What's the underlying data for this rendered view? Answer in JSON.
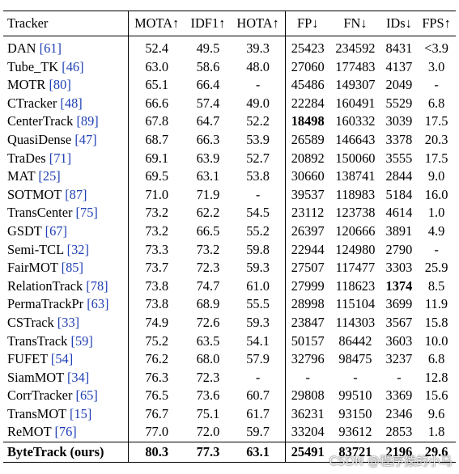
{
  "table": {
    "columns": [
      "Tracker",
      "MOTA↑",
      "IDF1↑",
      "HOTA↑",
      "FP↓",
      "FN↓",
      "IDs↓",
      "FPS↑"
    ],
    "rows": [
      {
        "name": "DAN",
        "cite": "[61]",
        "mota": "52.4",
        "idf1": "49.5",
        "hota": "39.3",
        "fp": "25423",
        "fn": "234592",
        "ids": "8431",
        "fps": "<3.9"
      },
      {
        "name": "Tube_TK",
        "cite": "[46]",
        "mota": "63.0",
        "idf1": "58.6",
        "hota": "48.0",
        "fp": "27060",
        "fn": "177483",
        "ids": "4137",
        "fps": "3.0"
      },
      {
        "name": "MOTR",
        "cite": "[80]",
        "mota": "65.1",
        "idf1": "66.4",
        "hota": "-",
        "fp": "45486",
        "fn": "149307",
        "ids": "2049",
        "fps": "-"
      },
      {
        "name": "CTracker",
        "cite": "[48]",
        "mota": "66.6",
        "idf1": "57.4",
        "hota": "49.0",
        "fp": "22284",
        "fn": "160491",
        "ids": "5529",
        "fps": "6.8"
      },
      {
        "name": "CenterTrack",
        "cite": "[89]",
        "mota": "67.8",
        "idf1": "64.7",
        "hota": "52.2",
        "fp": "18498",
        "fn": "160332",
        "ids": "3039",
        "fps": "17.5",
        "bold": [
          "fp"
        ]
      },
      {
        "name": "QuasiDense",
        "cite": "[47]",
        "mota": "68.7",
        "idf1": "66.3",
        "hota": "53.9",
        "fp": "26589",
        "fn": "146643",
        "ids": "3378",
        "fps": "20.3"
      },
      {
        "name": "TraDes",
        "cite": "[71]",
        "mota": "69.1",
        "idf1": "63.9",
        "hota": "52.7",
        "fp": "20892",
        "fn": "150060",
        "ids": "3555",
        "fps": "17.5"
      },
      {
        "name": "MAT",
        "cite": "[25]",
        "mota": "69.5",
        "idf1": "63.1",
        "hota": "53.8",
        "fp": "30660",
        "fn": "138741",
        "ids": "2844",
        "fps": "9.0"
      },
      {
        "name": "SOTMOT",
        "cite": "[87]",
        "mota": "71.0",
        "idf1": "71.9",
        "hota": "-",
        "fp": "39537",
        "fn": "118983",
        "ids": "5184",
        "fps": "16.0"
      },
      {
        "name": "TransCenter",
        "cite": "[75]",
        "mota": "73.2",
        "idf1": "62.2",
        "hota": "54.5",
        "fp": "23112",
        "fn": "123738",
        "ids": "4614",
        "fps": "1.0"
      },
      {
        "name": "GSDT",
        "cite": "[67]",
        "mota": "73.2",
        "idf1": "66.5",
        "hota": "55.2",
        "fp": "26397",
        "fn": "120666",
        "ids": "3891",
        "fps": "4.9"
      },
      {
        "name": "Semi-TCL",
        "cite": "[32]",
        "mota": "73.3",
        "idf1": "73.2",
        "hota": "59.8",
        "fp": "22944",
        "fn": "124980",
        "ids": "2790",
        "fps": "-"
      },
      {
        "name": "FairMOT",
        "cite": "[85]",
        "mota": "73.7",
        "idf1": "72.3",
        "hota": "59.3",
        "fp": "27507",
        "fn": "117477",
        "ids": "3303",
        "fps": "25.9"
      },
      {
        "name": "RelationTrack",
        "cite": "[78]",
        "mota": "73.8",
        "idf1": "74.7",
        "hota": "61.0",
        "fp": "27999",
        "fn": "118623",
        "ids": "1374",
        "fps": "8.5",
        "bold": [
          "ids"
        ]
      },
      {
        "name": "PermaTrackPr",
        "cite": "[63]",
        "mota": "73.8",
        "idf1": "68.9",
        "hota": "55.5",
        "fp": "28998",
        "fn": "115104",
        "ids": "3699",
        "fps": "11.9"
      },
      {
        "name": "CSTrack",
        "cite": "[33]",
        "mota": "74.9",
        "idf1": "72.6",
        "hota": "59.3",
        "fp": "23847",
        "fn": "114303",
        "ids": "3567",
        "fps": "15.8"
      },
      {
        "name": "TransTrack",
        "cite": "[59]",
        "mota": "75.2",
        "idf1": "63.5",
        "hota": "54.1",
        "fp": "50157",
        "fn": "86442",
        "ids": "3603",
        "fps": "10.0"
      },
      {
        "name": "FUFET",
        "cite": "[54]",
        "mota": "76.2",
        "idf1": "68.0",
        "hota": "57.9",
        "fp": "32796",
        "fn": "98475",
        "ids": "3237",
        "fps": "6.8"
      },
      {
        "name": "SiamMOT",
        "cite": "[34]",
        "mota": "76.3",
        "idf1": "72.3",
        "hota": "-",
        "fp": "-",
        "fn": "-",
        "ids": "-",
        "fps": "12.8"
      },
      {
        "name": "CorrTracker",
        "cite": "[65]",
        "mota": "76.5",
        "idf1": "73.6",
        "hota": "60.7",
        "fp": "29808",
        "fn": "99510",
        "ids": "3369",
        "fps": "15.6"
      },
      {
        "name": "TransMOT",
        "cite": "[15]",
        "mota": "76.7",
        "idf1": "75.1",
        "hota": "61.7",
        "fp": "36231",
        "fn": "93150",
        "ids": "2346",
        "fps": "9.6"
      },
      {
        "name": "ReMOT",
        "cite": "[76]",
        "mota": "77.0",
        "idf1": "72.0",
        "hota": "59.7",
        "fp": "33204",
        "fn": "93612",
        "ids": "2853",
        "fps": "1.8"
      }
    ],
    "ours": {
      "name": "ByteTrack (ours)",
      "mota": "80.3",
      "idf1": "77.3",
      "hota": "63.1",
      "fp": "25491",
      "fn": "83721",
      "ids": "2196",
      "fps": "29.6"
    }
  },
  "watermark": "CSDN @程序猿的小马"
}
